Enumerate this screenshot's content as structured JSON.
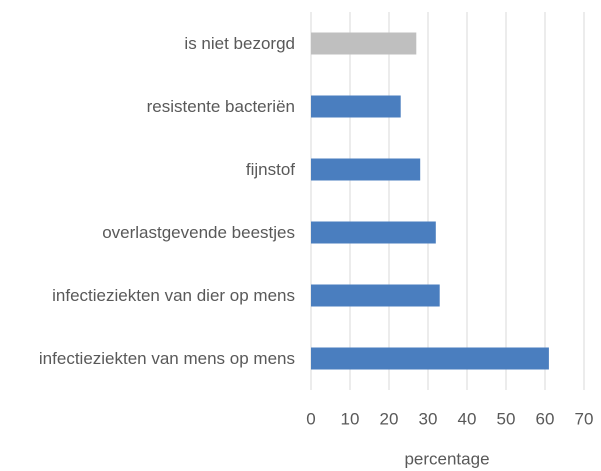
{
  "chart_data": {
    "type": "bar",
    "orientation": "horizontal",
    "categories": [
      "is niet bezorgd",
      "resistente bacteriën",
      "fijnstof",
      "overlastgevende beestjes",
      "infectieziekten van dier op mens",
      "infectieziekten van mens op mens"
    ],
    "values": [
      27,
      23,
      28,
      32,
      33,
      61
    ],
    "colors": [
      "#bfbfbf",
      "#4a7ebf",
      "#4a7ebf",
      "#4a7ebf",
      "#4a7ebf",
      "#4a7ebf"
    ],
    "xlim": [
      0,
      70
    ],
    "xticks": [
      0,
      10,
      20,
      30,
      40,
      50,
      60,
      70
    ],
    "xlabel": "percentage",
    "grid": true
  }
}
